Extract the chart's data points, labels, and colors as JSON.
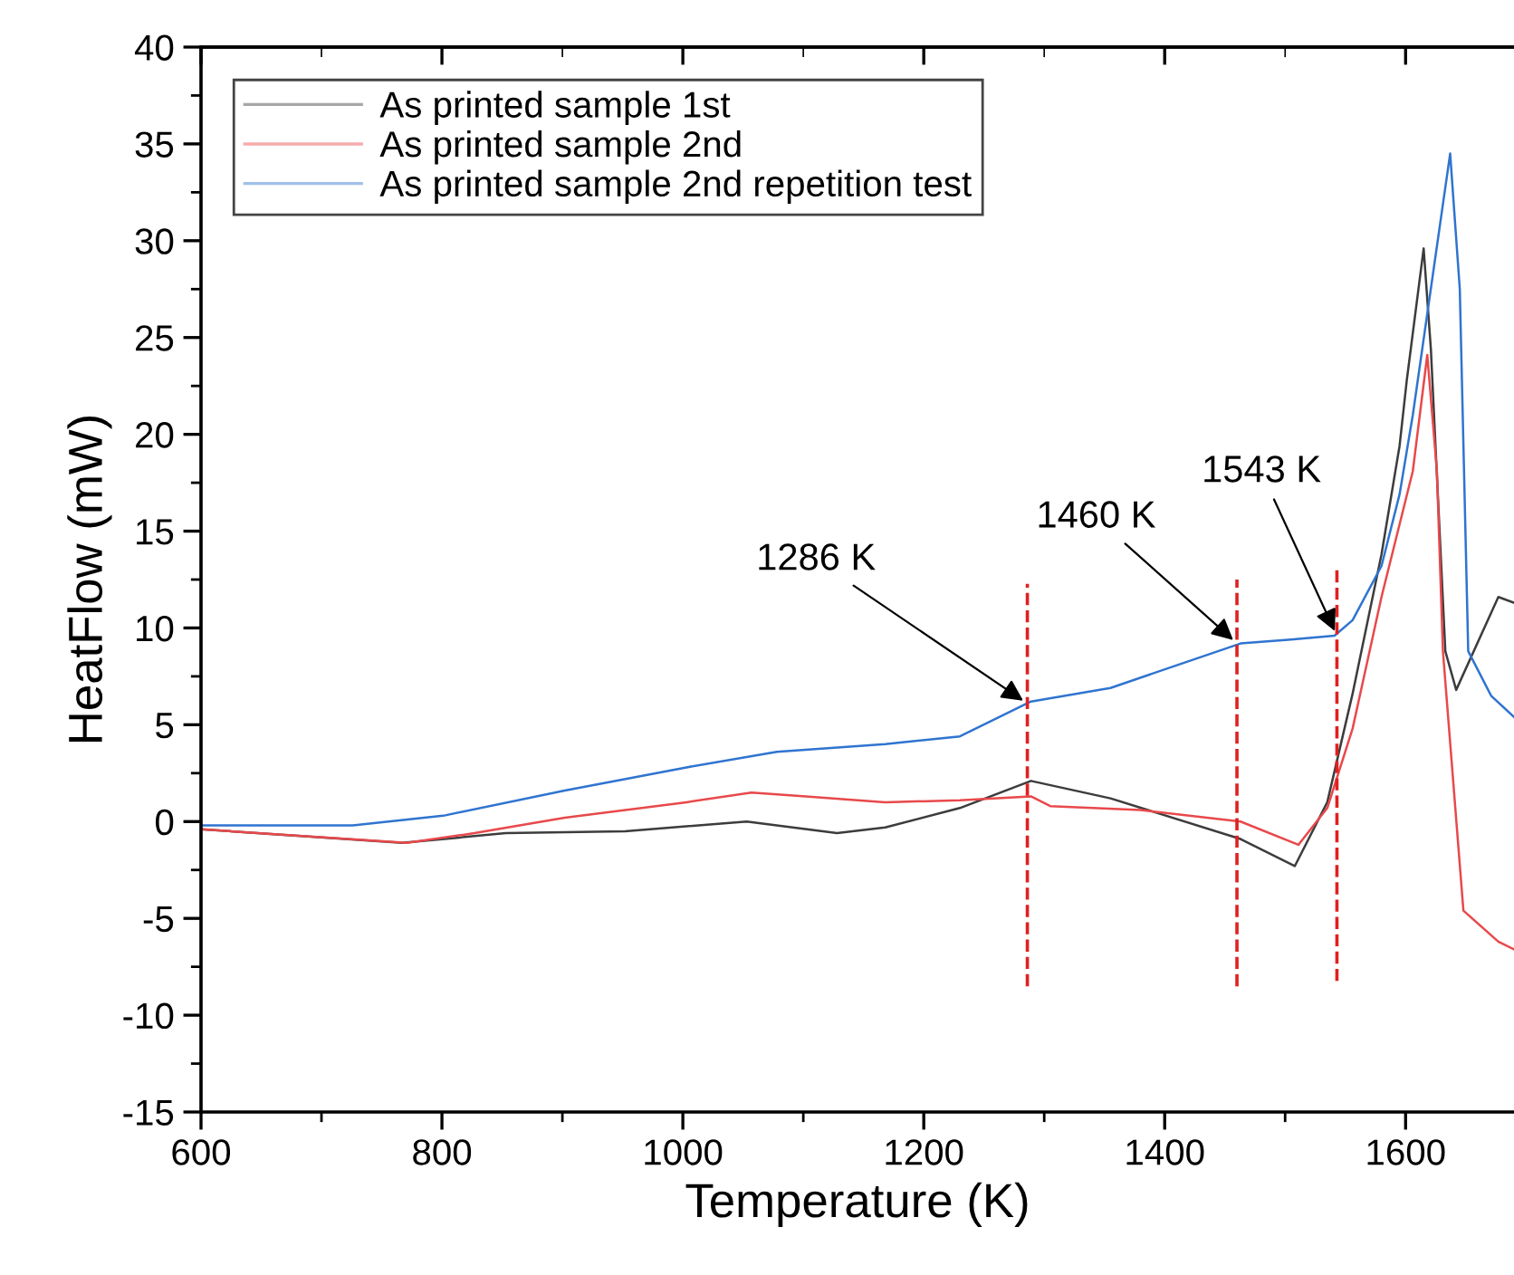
{
  "chart_data": {
    "type": "line",
    "xlabel": "Temperature (K)",
    "ylabel": "HeatFlow (mW)",
    "xlim": [
      600,
      1690
    ],
    "xticks": [
      600,
      800,
      1000,
      1200,
      1400,
      1600
    ],
    "ylim": [
      -15,
      40
    ],
    "yticks": [
      -15,
      -10,
      -5,
      0,
      5,
      10,
      15,
      20,
      25,
      30,
      35,
      40
    ],
    "grid": false,
    "legend": "top left",
    "marker": "none",
    "line_style": "solid",
    "series": [
      {
        "name": "As printed sample 1st",
        "color": "#3c3c3c",
        "x": [
          600,
          767,
          853,
          952,
          1053,
          1128,
          1168,
          1230,
          1289,
          1355,
          1463,
          1508,
          1535,
          1556,
          1580,
          1595,
          1601,
          1615,
          1621,
          1633,
          1642,
          1677,
          1690
        ],
        "values": [
          -0.4,
          -1.1,
          -0.6,
          -0.5,
          0,
          -0.6,
          -0.3,
          0.7,
          2.1,
          1.2,
          -0.9,
          -2.3,
          1.0,
          6.6,
          13.8,
          19.4,
          22.8,
          29.6,
          24.4,
          8.8,
          6.8,
          11.6,
          11.3
        ]
      },
      {
        "name": "As printed sample 2nd",
        "color": "#e8494b",
        "x": [
          600,
          771,
          827,
          902,
          1003,
          1057,
          1102,
          1168,
          1230,
          1289,
          1305,
          1380,
          1463,
          1511,
          1535,
          1556,
          1580,
          1606,
          1618,
          1626,
          1631,
          1648,
          1677,
          1690
        ],
        "values": [
          -0.4,
          -1.1,
          -0.6,
          0.2,
          1.0,
          1.5,
          1.3,
          1.0,
          1.1,
          1.3,
          0.8,
          0.6,
          0,
          -1.2,
          0.7,
          4.8,
          11.6,
          18.1,
          24.1,
          18.1,
          8.8,
          -4.6,
          -6.2,
          -6.6
        ]
      },
      {
        "name": "As printed sample 2nd repetition test",
        "color": "#2f74d0",
        "x": [
          600,
          726,
          801,
          902,
          1003,
          1078,
          1168,
          1230,
          1289,
          1355,
          1463,
          1505,
          1541,
          1556,
          1580,
          1595,
          1606,
          1637,
          1645,
          1652,
          1671,
          1690
        ],
        "values": [
          -0.2,
          -0.2,
          0.3,
          1.6,
          2.8,
          3.6,
          4.0,
          4.4,
          6.2,
          6.9,
          9.2,
          9.4,
          9.6,
          10.4,
          13.2,
          16.9,
          21.0,
          34.5,
          27.5,
          8.8,
          6.5,
          5.4
        ]
      }
    ],
    "ref_lines": [
      {
        "axis": "x",
        "value": 1286,
        "color": "#e02020",
        "line_style": "dashed"
      },
      {
        "axis": "x",
        "value": 1460,
        "color": "#e02020",
        "line_style": "dashed"
      },
      {
        "axis": "x",
        "value": 1543,
        "color": "#e02020",
        "line_style": "dashed"
      }
    ],
    "annotations": [
      {
        "text": "1286 K",
        "x": 1286,
        "y": 6.1
      },
      {
        "text": "1460 K",
        "x": 1460,
        "y": 9.2
      },
      {
        "text": "1543 K",
        "x": 1543,
        "y": 9.6
      }
    ]
  }
}
